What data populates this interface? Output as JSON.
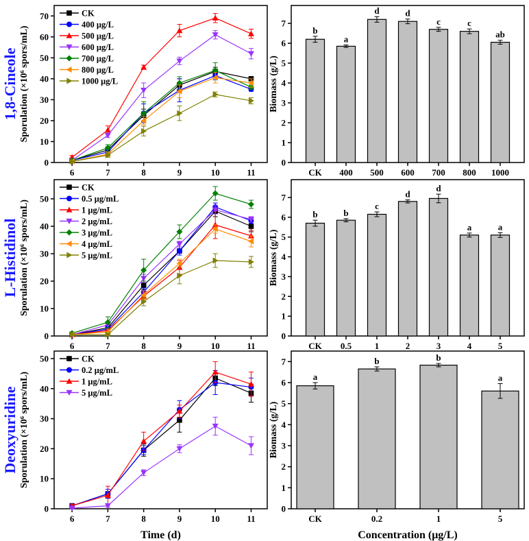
{
  "chart_data": [
    {
      "type": "line",
      "panel_title": "1,8-Cineole",
      "ylabel": "Sporulation (×10⁶ spors/mL)",
      "xlabel": "",
      "ylim": [
        0,
        75
      ],
      "xlim": [
        5.5,
        11.45
      ],
      "yticks": [
        0,
        10,
        20,
        30,
        40,
        50,
        60,
        70
      ],
      "x": [
        6,
        7,
        8,
        9,
        10,
        11
      ],
      "legend": "top-left",
      "series": [
        {
          "name": "CK",
          "color": "#000000",
          "marker": "square",
          "values": [
            1,
            6,
            22.5,
            37,
            43.5,
            40
          ],
          "errors": [
            0.5,
            1.5,
            3,
            3,
            2,
            1
          ]
        },
        {
          "name": "400 μg/L",
          "color": "#0000ff",
          "marker": "circle",
          "values": [
            1,
            5,
            23.5,
            34.5,
            41.5,
            35
          ],
          "errors": [
            0.5,
            1,
            4.5,
            5.5,
            2,
            1
          ]
        },
        {
          "name": "500 μg/L",
          "color": "#ff0000",
          "marker": "triangle-up",
          "values": [
            2.5,
            15.5,
            45.5,
            63,
            69,
            61.5
          ],
          "errors": [
            0.8,
            2,
            1,
            3,
            2.2,
            2.2
          ]
        },
        {
          "name": "600 μg/L",
          "color": "#9933ff",
          "marker": "triangle-down",
          "values": [
            1,
            13,
            34.5,
            48.5,
            61,
            52
          ],
          "errors": [
            0.5,
            1,
            3.5,
            1.8,
            2,
            2.5
          ]
        },
        {
          "name": "700 μg/L",
          "color": "#008000",
          "marker": "diamond",
          "values": [
            1,
            7,
            23.5,
            38,
            44,
            36
          ],
          "errors": [
            0.5,
            1.5,
            5.5,
            3,
            3.7,
            1
          ]
        },
        {
          "name": "800 μg/L",
          "color": "#ff8c00",
          "marker": "triangle-left",
          "values": [
            0.5,
            4,
            20,
            34,
            40.5,
            38
          ],
          "errors": [
            0.3,
            1,
            2,
            3,
            2.5,
            2
          ]
        },
        {
          "name": "1000 μg/L",
          "color": "#808000",
          "marker": "triangle-right",
          "values": [
            0.5,
            3.5,
            15,
            23.5,
            32.5,
            29.5
          ],
          "errors": [
            0.3,
            1,
            2.3,
            3.5,
            1.2,
            1.5
          ]
        }
      ]
    },
    {
      "type": "bar",
      "ylabel": "Biomass (g/L)",
      "xlabel": "",
      "ylim": [
        0,
        7.9
      ],
      "yticks": [
        0,
        1,
        2,
        3,
        4,
        5,
        6,
        7
      ],
      "categories": [
        "CK",
        "400",
        "500",
        "600",
        "700",
        "800",
        "1000"
      ],
      "values": [
        6.2,
        5.85,
        7.2,
        7.1,
        6.7,
        6.6,
        6.05
      ],
      "errors": [
        0.15,
        0.06,
        0.14,
        0.12,
        0.1,
        0.12,
        0.1
      ],
      "labels": [
        "b",
        "a",
        "d",
        "d",
        "c",
        "c",
        "ab"
      ],
      "color": "#c0c0c0"
    },
    {
      "type": "line",
      "panel_title": "L-Histidinol",
      "ylabel": "Sporulation (×10⁶ spors/mL)",
      "xlabel": "",
      "ylim": [
        0,
        57
      ],
      "xlim": [
        5.5,
        11.45
      ],
      "yticks": [
        0,
        10,
        20,
        30,
        40,
        50
      ],
      "x": [
        6,
        7,
        8,
        9,
        10,
        11
      ],
      "legend": "top-left",
      "series": [
        {
          "name": "CK",
          "color": "#000000",
          "marker": "square",
          "values": [
            0.5,
            3,
            18.5,
            31,
            45.5,
            40
          ],
          "errors": [
            0.5,
            1,
            1.5,
            1.5,
            2,
            2
          ]
        },
        {
          "name": "0.5 μg/mL",
          "color": "#0000ff",
          "marker": "circle",
          "values": [
            0.5,
            2.5,
            16,
            31,
            47,
            42
          ],
          "errors": [
            0.5,
            1,
            1.5,
            1.5,
            1.5,
            1
          ]
        },
        {
          "name": "1 μg/mL",
          "color": "#ff0000",
          "marker": "triangle-up",
          "values": [
            0.5,
            2,
            14.5,
            25,
            40.5,
            36.5
          ],
          "errors": [
            0.5,
            1,
            1.5,
            2.5,
            5,
            2
          ]
        },
        {
          "name": "2 μg/mL",
          "color": "#9933ff",
          "marker": "triangle-down",
          "values": [
            0.5,
            4,
            21,
            33.5,
            46,
            42.5
          ],
          "errors": [
            0.5,
            1,
            1.5,
            1,
            1.5,
            1
          ]
        },
        {
          "name": "3 μg/mL",
          "color": "#008000",
          "marker": "diamond",
          "values": [
            1,
            5,
            24,
            38,
            52,
            48
          ],
          "errors": [
            0.5,
            2,
            4,
            2.5,
            2.5,
            1.5
          ]
        },
        {
          "name": "4 μg/mL",
          "color": "#ff8c00",
          "marker": "triangle-left",
          "values": [
            0.5,
            1.5,
            15,
            26.5,
            39,
            34.5
          ],
          "errors": [
            0.5,
            1,
            1.5,
            1.5,
            1.5,
            2
          ]
        },
        {
          "name": "5 μg/mL",
          "color": "#808000",
          "marker": "triangle-right",
          "values": [
            0.5,
            0.5,
            12.5,
            22,
            27.5,
            27
          ],
          "errors": [
            0.3,
            0.5,
            1.5,
            3,
            2.5,
            2
          ]
        }
      ]
    },
    {
      "type": "bar",
      "ylabel": "Biomass (g/L)",
      "xlabel": "",
      "ylim": [
        0,
        7.9
      ],
      "yticks": [
        0,
        1,
        2,
        3,
        4,
        5,
        6,
        7
      ],
      "categories": [
        "CK",
        "0.5",
        "1",
        "2",
        "3",
        "4",
        "5"
      ],
      "values": [
        5.7,
        5.85,
        6.15,
        6.8,
        6.95,
        5.1,
        5.1
      ],
      "errors": [
        0.15,
        0.08,
        0.12,
        0.08,
        0.22,
        0.1,
        0.12
      ],
      "labels": [
        "b",
        "b",
        "c",
        "d",
        "d",
        "a",
        "a"
      ],
      "color": "#c0c0c0"
    },
    {
      "type": "line",
      "panel_title": "Deoxyuridine",
      "ylabel": "Sporulation (×10⁶ spors/mL)",
      "xlabel": "Time (d)",
      "ylim": [
        0,
        52.5
      ],
      "xlim": [
        5.5,
        11.45
      ],
      "yticks": [
        0,
        10,
        20,
        30,
        40,
        50
      ],
      "x": [
        6,
        7,
        8,
        9,
        10,
        11
      ],
      "legend": "top-left",
      "series": [
        {
          "name": "CK",
          "color": "#000000",
          "marker": "square",
          "values": [
            1,
            5,
            19.5,
            29.5,
            43.5,
            38.5
          ],
          "errors": [
            0.5,
            1.5,
            2,
            4,
            2.5,
            3
          ]
        },
        {
          "name": "0.2 μg/mL",
          "color": "#0000ff",
          "marker": "circle",
          "values": [
            1,
            5,
            19.5,
            33,
            42,
            40.5
          ],
          "errors": [
            0.5,
            1.5,
            1.5,
            3,
            4,
            3
          ]
        },
        {
          "name": "1 μg/mL",
          "color": "#ff0000",
          "marker": "triangle-up",
          "values": [
            1,
            4.5,
            22.5,
            32.5,
            45.5,
            41.5
          ],
          "errors": [
            0.5,
            3,
            3,
            2,
            3.5,
            4
          ]
        },
        {
          "name": "5 μg/mL",
          "color": "#9933ff",
          "marker": "triangle-down",
          "values": [
            0.2,
            1,
            12,
            20,
            27.5,
            21
          ],
          "errors": [
            0.2,
            0.5,
            1,
            1.3,
            3,
            3
          ]
        }
      ]
    },
    {
      "type": "bar",
      "ylabel": "Biomass (g/L)",
      "xlabel": "Concentration (μg/L)",
      "ylim": [
        0,
        7.5
      ],
      "yticks": [
        0,
        1,
        2,
        3,
        4,
        5,
        6,
        7
      ],
      "categories": [
        "CK",
        "0.2",
        "1",
        "5"
      ],
      "values": [
        5.85,
        6.65,
        6.83,
        5.6
      ],
      "errors": [
        0.15,
        0.1,
        0.08,
        0.35
      ],
      "labels": [
        "a",
        "b",
        "b",
        "a"
      ],
      "color": "#c0c0c0"
    }
  ]
}
